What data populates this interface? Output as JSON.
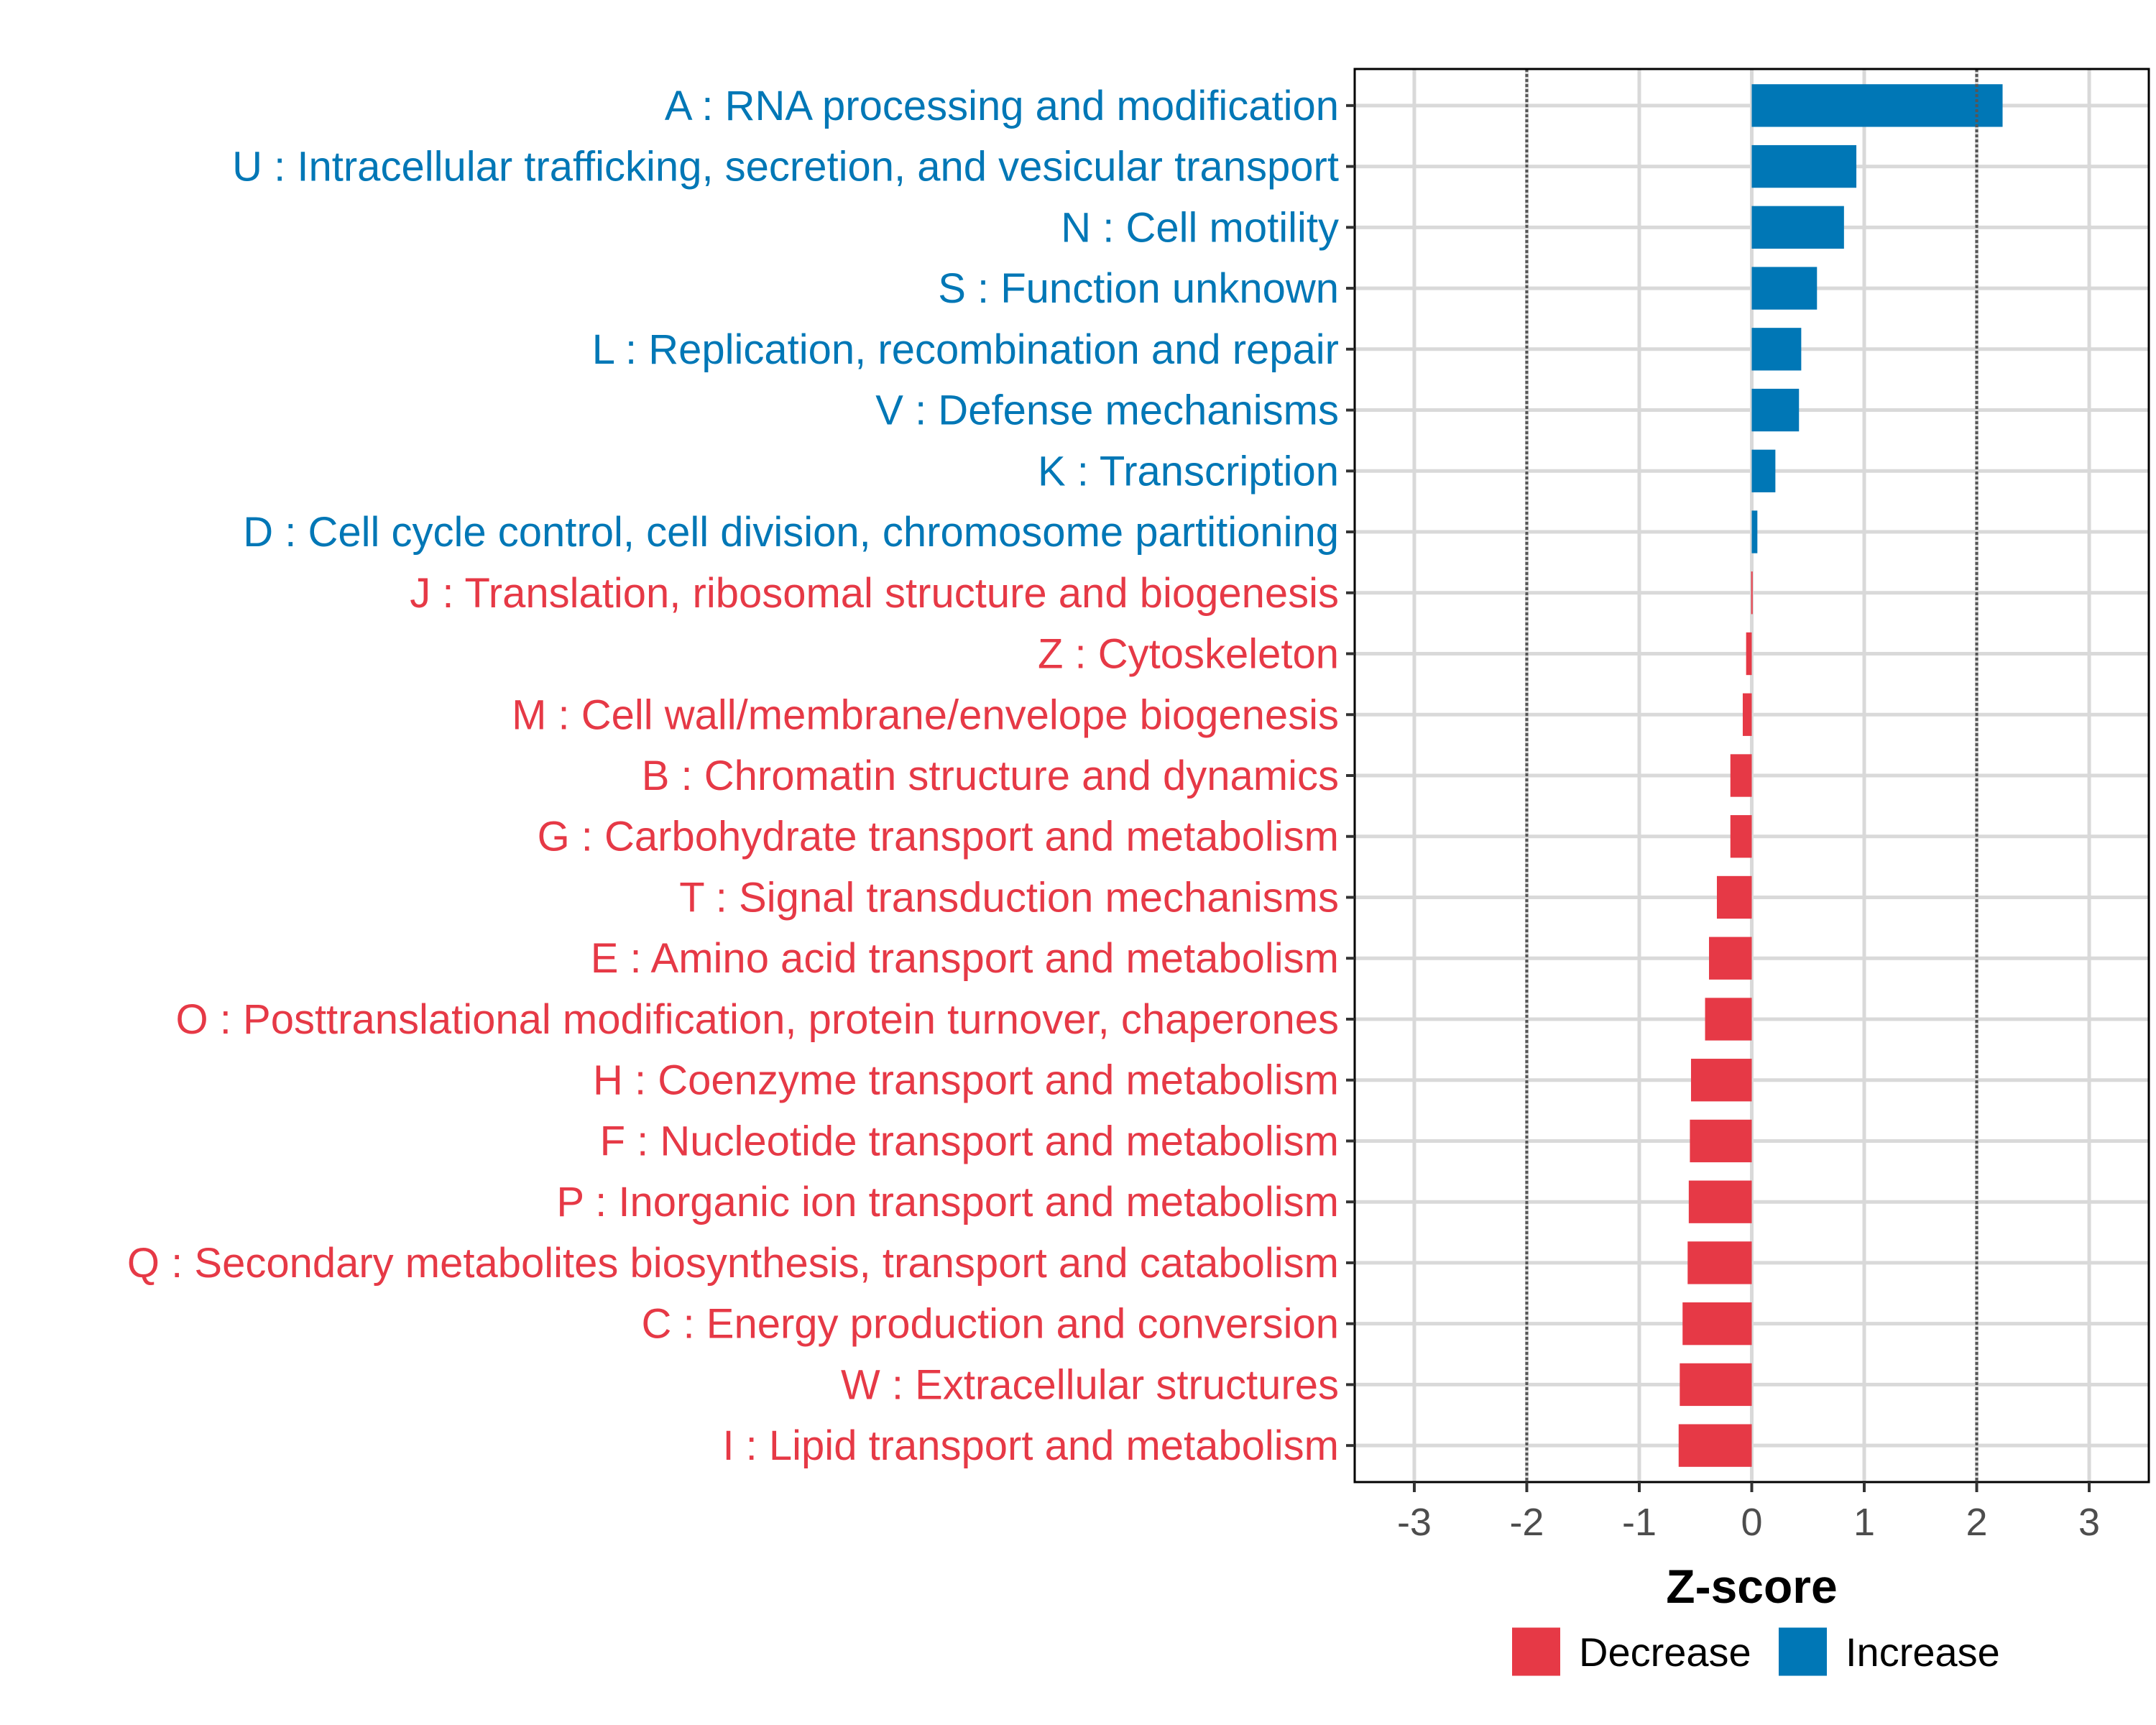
{
  "chart_data": {
    "type": "bar",
    "orientation": "horizontal",
    "title": "",
    "xlabel": "Z-score",
    "ylabel": "",
    "xlim": [
      -3.53,
      3.53
    ],
    "x_ticks": [
      -3,
      -2,
      -1,
      0,
      1,
      2,
      3
    ],
    "x_tick_labels": [
      "-3",
      "-2",
      "-1",
      "0",
      "1",
      "2",
      "3"
    ],
    "reference_lines": [
      -2,
      2
    ],
    "grid": true,
    "legend_position": "bottom",
    "legend": [
      {
        "name": "Decrease",
        "color": "#E63946"
      },
      {
        "name": "Increase",
        "color": "#0077B6"
      }
    ],
    "categories": [
      "A : RNA processing and modification",
      "U : Intracellular trafficking, secretion, and vesicular transport",
      "N : Cell motility",
      "S : Function unknown",
      "L : Replication, recombination and repair",
      "V : Defense mechanisms",
      "K : Transcription",
      "D : Cell cycle control, cell division, chromosome partitioning",
      "J : Translation, ribosomal structure and biogenesis",
      "Z : Cytoskeleton",
      "M : Cell wall/membrane/envelope biogenesis",
      "B : Chromatin structure and dynamics",
      "G : Carbohydrate transport and metabolism",
      "T : Signal transduction mechanisms",
      "E : Amino acid transport and metabolism",
      "O : Posttranslational modification, protein turnover, chaperones",
      "H : Coenzyme transport and metabolism",
      "F : Nucleotide transport and metabolism",
      "P : Inorganic ion transport and metabolism",
      "Q : Secondary metabolites biosynthesis, transport and catabolism",
      "C : Energy production and conversion",
      "W : Extracellular structures",
      "I : Lipid transport and metabolism"
    ],
    "values": [
      2.23,
      0.93,
      0.82,
      0.58,
      0.44,
      0.42,
      0.21,
      0.05,
      -0.005,
      -0.05,
      -0.08,
      -0.19,
      -0.19,
      -0.31,
      -0.38,
      -0.415,
      -0.54,
      -0.55,
      -0.56,
      -0.57,
      -0.615,
      -0.64,
      -0.65
    ],
    "groups": [
      "Increase",
      "Increase",
      "Increase",
      "Increase",
      "Increase",
      "Increase",
      "Increase",
      "Increase",
      "Decrease",
      "Decrease",
      "Decrease",
      "Decrease",
      "Decrease",
      "Decrease",
      "Decrease",
      "Decrease",
      "Decrease",
      "Decrease",
      "Decrease",
      "Decrease",
      "Decrease",
      "Decrease",
      "Decrease"
    ]
  }
}
